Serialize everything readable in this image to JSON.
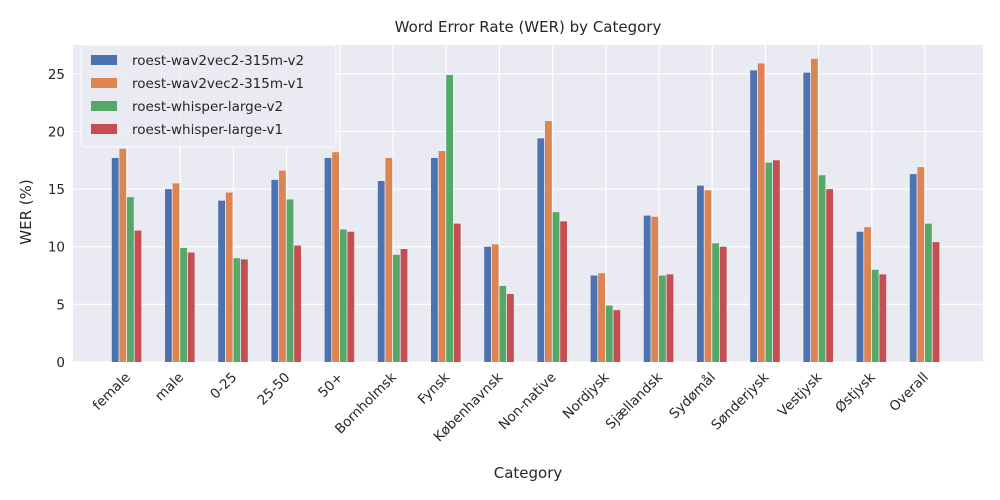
{
  "chart_data": {
    "type": "bar",
    "title": "Word Error Rate (WER) by Category",
    "xlabel": "Category",
    "ylabel": "WER (%)",
    "ylim": [
      0,
      27.5
    ],
    "yticks": [
      0,
      5,
      10,
      15,
      20,
      25
    ],
    "grid": true,
    "legend_position": "top-left",
    "categories": [
      "female",
      "male",
      "0-25",
      "25-50",
      "50+",
      "Bornholmsk",
      "Fynsk",
      "Københavnsk",
      "Non-native",
      "Nordjysk",
      "Sjællandsk",
      "Sydømål",
      "Sønderjysk",
      "Vestjysk",
      "Østjysk",
      "Overall"
    ],
    "series": [
      {
        "name": "roest-wav2vec2-315m-v2",
        "color": "#4c72b0",
        "values": [
          17.7,
          15.0,
          14.0,
          15.8,
          17.7,
          15.7,
          17.7,
          10.0,
          19.4,
          7.5,
          12.7,
          15.3,
          25.3,
          25.1,
          11.3,
          16.3
        ]
      },
      {
        "name": "roest-wav2vec2-315m-v1",
        "color": "#dd8452",
        "values": [
          18.5,
          15.5,
          14.7,
          16.6,
          18.2,
          17.7,
          18.3,
          10.2,
          20.9,
          7.7,
          12.6,
          14.9,
          25.9,
          26.3,
          11.7,
          16.9
        ]
      },
      {
        "name": "roest-whisper-large-v2",
        "color": "#55a868",
        "values": [
          14.3,
          9.9,
          9.0,
          14.1,
          11.5,
          9.3,
          24.9,
          6.6,
          13.0,
          4.9,
          7.5,
          10.3,
          17.3,
          16.2,
          8.0,
          12.0
        ]
      },
      {
        "name": "roest-whisper-large-v1",
        "color": "#c44e52",
        "values": [
          11.4,
          9.5,
          8.9,
          10.1,
          11.3,
          9.8,
          12.0,
          5.9,
          12.2,
          4.5,
          7.6,
          10.0,
          17.5,
          15.0,
          7.6,
          10.4
        ]
      }
    ]
  }
}
